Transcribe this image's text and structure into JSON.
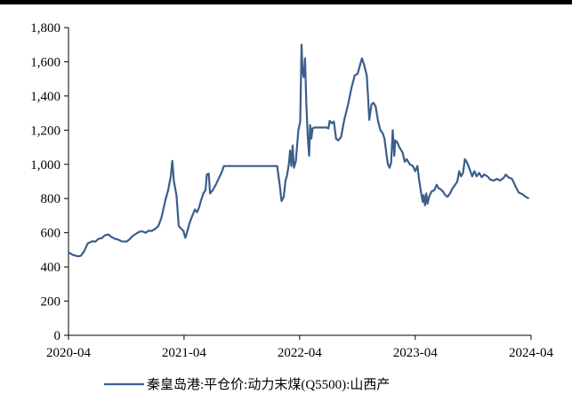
{
  "colors": {
    "series_line": "#3B5E8C",
    "axis": "#000000",
    "top_border": "#000000"
  },
  "chart_data": {
    "type": "line",
    "title": "",
    "xlabel": "",
    "ylabel": "",
    "ylim": [
      0,
      1800
    ],
    "y_ticks": [
      0,
      200,
      400,
      600,
      800,
      1000,
      1200,
      1400,
      1600,
      1800
    ],
    "y_tick_labels": [
      "0",
      "200",
      "400",
      "600",
      "800",
      "1,000",
      "1,200",
      "1,400",
      "1,600",
      "1,800"
    ],
    "x_ticks": [
      "2020-04",
      "2021-04",
      "2022-04",
      "2023-04",
      "2024-04"
    ],
    "grid": false,
    "legend_position": "bottom",
    "series": [
      {
        "name": "秦皇岛港:平仓价:动力末煤(Q5500):山西产",
        "points": [
          [
            "2020-04-01",
            485
          ],
          [
            "2020-04-15",
            470
          ],
          [
            "2020-05-01",
            462
          ],
          [
            "2020-05-10",
            465
          ],
          [
            "2020-05-20",
            490
          ],
          [
            "2020-06-01",
            538
          ],
          [
            "2020-06-15",
            550
          ],
          [
            "2020-06-25",
            548
          ],
          [
            "2020-07-05",
            565
          ],
          [
            "2020-07-15",
            568
          ],
          [
            "2020-07-25",
            585
          ],
          [
            "2020-08-05",
            590
          ],
          [
            "2020-08-15",
            575
          ],
          [
            "2020-08-25",
            565
          ],
          [
            "2020-09-05",
            560
          ],
          [
            "2020-09-15",
            550
          ],
          [
            "2020-10-01",
            548
          ],
          [
            "2020-10-10",
            560
          ],
          [
            "2020-10-20",
            580
          ],
          [
            "2020-11-01",
            595
          ],
          [
            "2020-11-10",
            605
          ],
          [
            "2020-11-20",
            608
          ],
          [
            "2020-12-01",
            600
          ],
          [
            "2020-12-10",
            612
          ],
          [
            "2020-12-20",
            610
          ],
          [
            "2021-01-01",
            625
          ],
          [
            "2021-01-10",
            640
          ],
          [
            "2021-01-20",
            690
          ],
          [
            "2021-02-01",
            790
          ],
          [
            "2021-02-10",
            850
          ],
          [
            "2021-02-18",
            930
          ],
          [
            "2021-02-23",
            1020
          ],
          [
            "2021-02-28",
            900
          ],
          [
            "2021-03-08",
            820
          ],
          [
            "2021-03-15",
            640
          ],
          [
            "2021-03-22",
            625
          ],
          [
            "2021-03-30",
            610
          ],
          [
            "2021-04-05",
            570
          ],
          [
            "2021-04-10",
            600
          ],
          [
            "2021-04-18",
            655
          ],
          [
            "2021-04-25",
            690
          ],
          [
            "2021-05-05",
            735
          ],
          [
            "2021-05-12",
            720
          ],
          [
            "2021-05-18",
            745
          ],
          [
            "2021-05-25",
            790
          ],
          [
            "2021-06-01",
            830
          ],
          [
            "2021-06-08",
            850
          ],
          [
            "2021-06-12",
            940
          ],
          [
            "2021-06-18",
            945
          ],
          [
            "2021-06-22",
            830
          ],
          [
            "2021-07-01",
            850
          ],
          [
            "2021-07-10",
            880
          ],
          [
            "2021-07-20",
            920
          ],
          [
            "2021-07-28",
            950
          ],
          [
            "2021-08-05",
            990
          ],
          [
            "2021-09-15",
            990
          ],
          [
            "2021-11-01",
            990
          ],
          [
            "2021-12-15",
            990
          ],
          [
            "2022-01-20",
            990
          ],
          [
            "2022-01-28",
            880
          ],
          [
            "2022-02-03",
            785
          ],
          [
            "2022-02-10",
            810
          ],
          [
            "2022-02-15",
            900
          ],
          [
            "2022-02-20",
            935
          ],
          [
            "2022-02-26",
            1000
          ],
          [
            "2022-03-02",
            1080
          ],
          [
            "2022-03-06",
            990
          ],
          [
            "2022-03-10",
            1110
          ],
          [
            "2022-03-14",
            980
          ],
          [
            "2022-03-20",
            1020
          ],
          [
            "2022-03-28",
            1200
          ],
          [
            "2022-04-03",
            1250
          ],
          [
            "2022-04-07",
            1700
          ],
          [
            "2022-04-10",
            1550
          ],
          [
            "2022-04-14",
            1510
          ],
          [
            "2022-04-18",
            1620
          ],
          [
            "2022-04-22",
            1360
          ],
          [
            "2022-04-27",
            1150
          ],
          [
            "2022-05-01",
            1050
          ],
          [
            "2022-05-04",
            1230
          ],
          [
            "2022-05-08",
            1150
          ],
          [
            "2022-05-12",
            1210
          ],
          [
            "2022-05-18",
            1215
          ],
          [
            "2022-06-05",
            1215
          ],
          [
            "2022-06-25",
            1215
          ],
          [
            "2022-07-01",
            1210
          ],
          [
            "2022-07-05",
            1255
          ],
          [
            "2022-07-12",
            1240
          ],
          [
            "2022-07-18",
            1250
          ],
          [
            "2022-07-25",
            1150
          ],
          [
            "2022-08-01",
            1140
          ],
          [
            "2022-08-10",
            1160
          ],
          [
            "2022-08-20",
            1260
          ],
          [
            "2022-09-01",
            1350
          ],
          [
            "2022-09-12",
            1450
          ],
          [
            "2022-09-22",
            1520
          ],
          [
            "2022-10-01",
            1530
          ],
          [
            "2022-10-10",
            1590
          ],
          [
            "2022-10-15",
            1620
          ],
          [
            "2022-10-22",
            1580
          ],
          [
            "2022-10-30",
            1520
          ],
          [
            "2022-11-03",
            1400
          ],
          [
            "2022-11-07",
            1260
          ],
          [
            "2022-11-10",
            1300
          ],
          [
            "2022-11-14",
            1350
          ],
          [
            "2022-11-20",
            1360
          ],
          [
            "2022-11-27",
            1340
          ],
          [
            "2022-12-05",
            1250
          ],
          [
            "2022-12-12",
            1200
          ],
          [
            "2022-12-20",
            1180
          ],
          [
            "2022-12-25",
            1150
          ],
          [
            "2023-01-01",
            1050
          ],
          [
            "2023-01-05",
            1000
          ],
          [
            "2023-01-10",
            980
          ],
          [
            "2023-01-15",
            1010
          ],
          [
            "2023-01-20",
            1200
          ],
          [
            "2023-01-25",
            1050
          ],
          [
            "2023-01-28",
            1140
          ],
          [
            "2023-02-03",
            1130
          ],
          [
            "2023-02-10",
            1100
          ],
          [
            "2023-02-20",
            1070
          ],
          [
            "2023-02-27",
            1015
          ],
          [
            "2023-03-05",
            1030
          ],
          [
            "2023-03-15",
            1000
          ],
          [
            "2023-03-25",
            990
          ],
          [
            "2023-04-01",
            960
          ],
          [
            "2023-04-08",
            990
          ],
          [
            "2023-04-14",
            900
          ],
          [
            "2023-04-20",
            830
          ],
          [
            "2023-04-25",
            780
          ],
          [
            "2023-04-28",
            820
          ],
          [
            "2023-05-02",
            760
          ],
          [
            "2023-05-06",
            830
          ],
          [
            "2023-05-10",
            770
          ],
          [
            "2023-05-15",
            810
          ],
          [
            "2023-05-22",
            840
          ],
          [
            "2023-06-01",
            850
          ],
          [
            "2023-06-08",
            880
          ],
          [
            "2023-06-14",
            860
          ],
          [
            "2023-06-20",
            855
          ],
          [
            "2023-06-28",
            840
          ],
          [
            "2023-07-05",
            820
          ],
          [
            "2023-07-12",
            810
          ],
          [
            "2023-07-20",
            830
          ],
          [
            "2023-07-28",
            860
          ],
          [
            "2023-08-05",
            880
          ],
          [
            "2023-08-12",
            900
          ],
          [
            "2023-08-18",
            960
          ],
          [
            "2023-08-24",
            930
          ],
          [
            "2023-08-30",
            950
          ],
          [
            "2023-09-05",
            1030
          ],
          [
            "2023-09-12",
            1010
          ],
          [
            "2023-09-20",
            970
          ],
          [
            "2023-09-28",
            930
          ],
          [
            "2023-10-05",
            960
          ],
          [
            "2023-10-12",
            930
          ],
          [
            "2023-10-20",
            950
          ],
          [
            "2023-10-28",
            925
          ],
          [
            "2023-11-05",
            940
          ],
          [
            "2023-11-15",
            930
          ],
          [
            "2023-11-25",
            910
          ],
          [
            "2023-12-05",
            905
          ],
          [
            "2023-12-15",
            915
          ],
          [
            "2023-12-25",
            905
          ],
          [
            "2024-01-05",
            920
          ],
          [
            "2024-01-12",
            940
          ],
          [
            "2024-01-20",
            925
          ],
          [
            "2024-02-01",
            915
          ],
          [
            "2024-02-12",
            870
          ],
          [
            "2024-02-22",
            835
          ],
          [
            "2024-03-05",
            825
          ],
          [
            "2024-03-15",
            810
          ],
          [
            "2024-03-25",
            800
          ]
        ]
      }
    ]
  }
}
